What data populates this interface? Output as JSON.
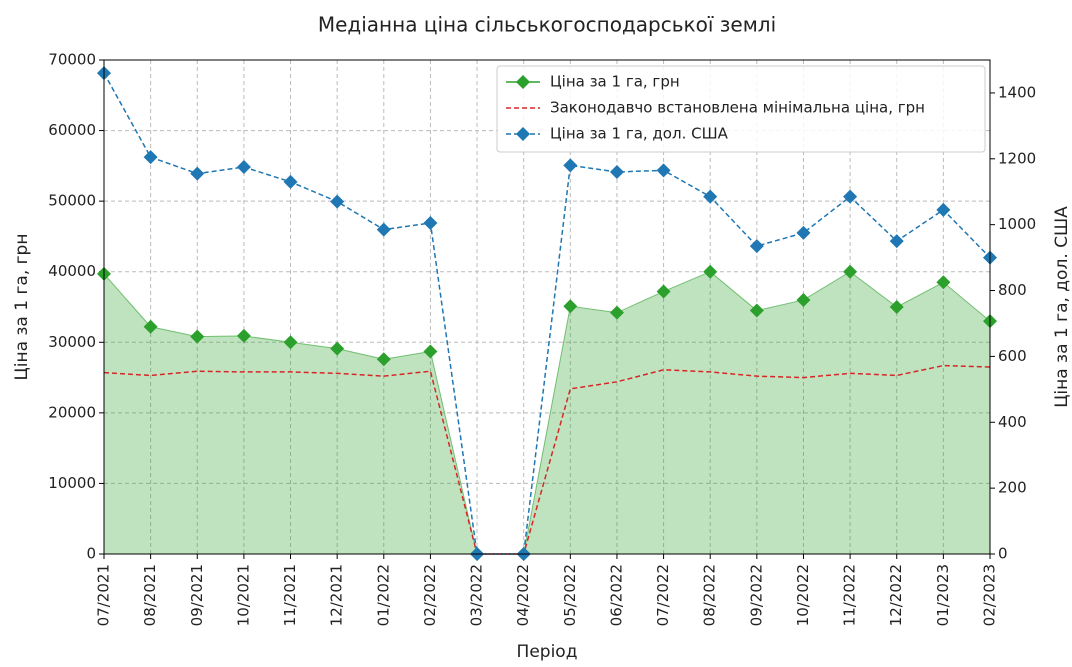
{
  "chart_data": {
    "type": "line",
    "title": "Медіанна ціна сільськогосподарської землі",
    "xlabel": "Період",
    "ylabel": "Ціна за 1 га, грн",
    "y2label": "Ціна за 1 га, дол. США",
    "categories": [
      "07/2021",
      "08/2021",
      "09/2021",
      "10/2021",
      "11/2021",
      "12/2021",
      "01/2022",
      "02/2022",
      "03/2022",
      "04/2022",
      "05/2022",
      "06/2022",
      "07/2022",
      "08/2022",
      "09/2022",
      "10/2022",
      "11/2022",
      "12/2022",
      "01/2023",
      "02/2023"
    ],
    "series": [
      {
        "name": "Ціна за 1 га, грн",
        "color": "#2ca02c",
        "marker": "diamond",
        "linestyle": "solid",
        "fill": true,
        "axis": "y",
        "values": [
          39700,
          32200,
          30800,
          30900,
          30000,
          29100,
          27600,
          28700,
          0,
          0,
          35100,
          34200,
          37200,
          40000,
          34500,
          36000,
          40000,
          35000,
          38500,
          33000
        ]
      },
      {
        "name": "Законодавчо встановлена мінімальна ціна, грн",
        "color": "#d62728",
        "marker": "none",
        "linestyle": "dashed",
        "fill": false,
        "axis": "y",
        "values": [
          25700,
          25300,
          25900,
          25800,
          25800,
          25600,
          25200,
          25900,
          0,
          0,
          23400,
          24400,
          26100,
          25800,
          25200,
          25000,
          25600,
          25300,
          26700,
          26500
        ]
      },
      {
        "name": "Ціна за 1 га, дол. США",
        "color": "#1f77b4",
        "marker": "diamond",
        "linestyle": "dashed",
        "fill": false,
        "axis": "y2",
        "values": [
          1460,
          1205,
          1155,
          1175,
          1130,
          1070,
          985,
          1005,
          0,
          0,
          1180,
          1160,
          1165,
          1085,
          935,
          975,
          1085,
          950,
          1045,
          900
        ]
      }
    ],
    "ylim": [
      0,
      70000
    ],
    "yticks": [
      0,
      10000,
      20000,
      30000,
      40000,
      50000,
      60000,
      70000
    ],
    "y2lim": [
      0,
      1500
    ],
    "y2ticks": [
      0,
      200,
      400,
      600,
      800,
      1000,
      1200,
      1400
    ],
    "grid": true,
    "legend": "upper right"
  }
}
